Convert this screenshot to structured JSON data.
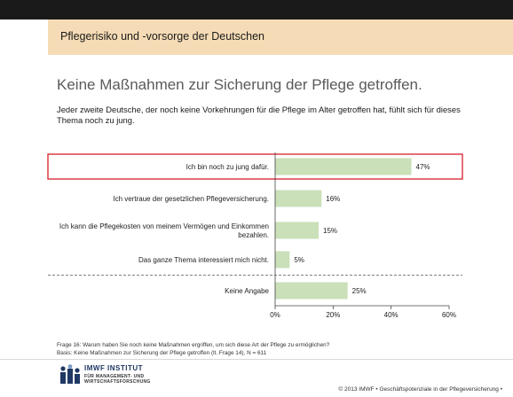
{
  "banner": {
    "title": "Pflegerisiko und -vorsorge der Deutschen"
  },
  "headline": "Keine Maßnahmen zur Sicherung der Pflege getroffen.",
  "intro": "Jeder zweite Deutsche, der noch keine Vorkehrungen für die Pflege im Alter getroffen hat, fühlt sich für dieses Thema noch zu jung.",
  "chart_data": {
    "type": "bar",
    "orientation": "horizontal",
    "categories": [
      "Ich bin noch zu jung dafür.",
      "Ich vertraue der gesetzlichen Pflegeversicherung.",
      "Ich kann die Pflegekosten von meinem Vermögen und Einkommen bezahlen.",
      "Das ganze Thema interessiert mich nicht.",
      "Keine Angabe"
    ],
    "values": [
      47,
      16,
      15,
      5,
      25
    ],
    "value_labels": [
      "47%",
      "16%",
      "15%",
      "5%",
      "25%"
    ],
    "xlim": [
      0,
      60
    ],
    "xticks": [
      0,
      20,
      40,
      60
    ],
    "xtick_labels": [
      "0%",
      "20%",
      "40%",
      "60%"
    ],
    "highlighted_category_index": 0,
    "separator_before_index": 4,
    "bar_color": "#c9e0b8",
    "highlight_color": "#d7202a",
    "grid": false,
    "legend": "none"
  },
  "footnote": {
    "line1": "Frage 16: Warum haben Sie noch keine Maßnahmen ergriffen, um sich diese Art der Pflege zu ermöglichen?",
    "line2": "Basis: Keine Maßnahmen zur Sicherung der Pflege getroffen (lt. Frage 14), N = 611"
  },
  "logo": {
    "name": "IMWF INSTITUT",
    "sub1": "FÜR MANAGEMENT- UND",
    "sub2": "WIRTSCHAFTSFORSCHUNG"
  },
  "copyright": "© 2013 IMWF • Geschäftspotenziale in der Pflegeversicherung •",
  "colors": {
    "banner": "#f6dcb6",
    "topbar": "#1a1a1a",
    "logo_blue": "#1f3864"
  }
}
